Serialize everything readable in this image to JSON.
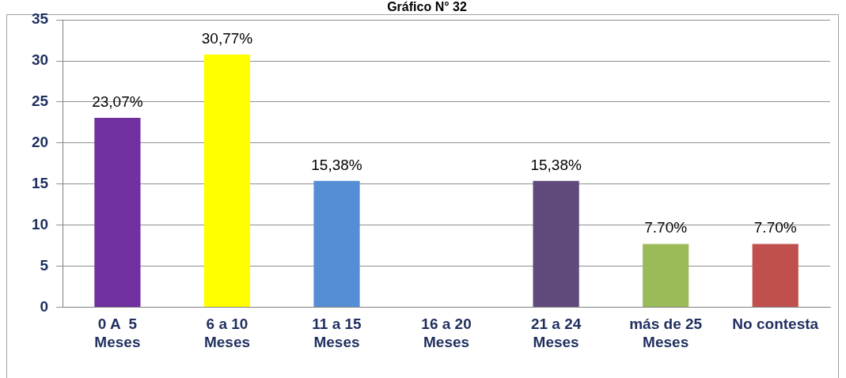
{
  "chart_data": {
    "type": "bar",
    "title": "Gráfico N° 32",
    "categories": [
      "0 A  5\nMeses",
      "6 a 10\nMeses",
      "11 a 15\nMeses",
      "16 a 20\nMeses",
      "21 a 24\nMeses",
      "más de 25\nMeses",
      "No contesta"
    ],
    "values": [
      23.07,
      30.77,
      15.38,
      null,
      15.38,
      7.7,
      7.7
    ],
    "colors": [
      "#7030a0",
      "#ffff00",
      "#558ed5",
      "#808080",
      "#604a7b",
      "#9bbb59",
      "#c0504d"
    ],
    "value_labels": [
      "23,07%",
      "30,77%",
      "15,38%",
      null,
      "15,38%",
      "7.70%",
      "7.70%"
    ],
    "ylim": [
      0,
      35
    ],
    "yticks": [
      0,
      5,
      10,
      15,
      20,
      25,
      30,
      35
    ],
    "grid": "y",
    "legend": false
  }
}
